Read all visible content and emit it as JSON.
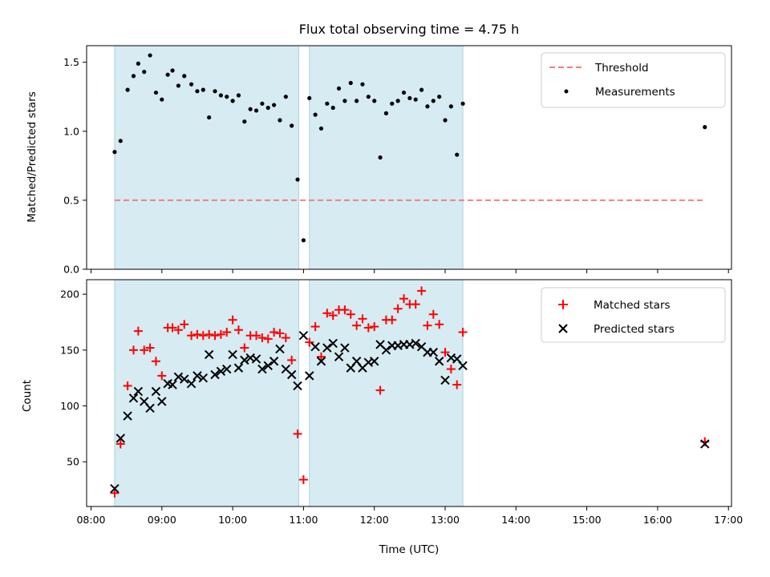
{
  "chart_data": [
    {
      "type": "scatter",
      "title": "Flux total observing time = 4.75 h",
      "xlabel": "",
      "ylabel": "Matched/Predicted stars",
      "ylim": [
        0,
        1.62
      ],
      "yticks": [
        "0.0",
        "0.5",
        "1.0",
        "1.5"
      ],
      "xlim": [
        "08:00",
        "17:00"
      ],
      "grid": false,
      "legend_position": "top-right",
      "shaded_intervals": [
        [
          "08:20",
          "10:56"
        ],
        [
          "11:05",
          "13:15"
        ],
        [
          "08:20",
          "10:56"
        ]
      ],
      "series": [
        {
          "name": "Threshold",
          "style": "dashed-line",
          "color": "#f08080",
          "x": [
            "08:20",
            "16:40"
          ],
          "y": [
            0.5,
            0.5
          ]
        },
        {
          "name": "Measurements",
          "style": "dot",
          "color": "#000000",
          "x": [
            "08:20",
            "08:25",
            "08:31",
            "08:36",
            "08:40",
            "08:45",
            "08:50",
            "08:55",
            "09:00",
            "09:05",
            "09:09",
            "09:14",
            "09:19",
            "09:25",
            "09:30",
            "09:35",
            "09:40",
            "09:45",
            "09:50",
            "09:55",
            "10:00",
            "10:05",
            "10:10",
            "10:15",
            "10:20",
            "10:25",
            "10:30",
            "10:35",
            "10:40",
            "10:45",
            "10:50",
            "10:55",
            "11:00",
            "11:05",
            "11:10",
            "11:15",
            "11:20",
            "11:25",
            "11:30",
            "11:35",
            "11:40",
            "11:45",
            "11:50",
            "11:55",
            "12:00",
            "12:05",
            "12:10",
            "12:15",
            "12:20",
            "12:25",
            "12:30",
            "12:35",
            "12:40",
            "12:45",
            "12:50",
            "12:55",
            "13:00",
            "13:05",
            "13:10",
            "13:15",
            "16:40"
          ],
          "y": [
            0.85,
            0.93,
            1.3,
            1.4,
            1.49,
            1.43,
            1.55,
            1.28,
            1.23,
            1.41,
            1.44,
            1.33,
            1.4,
            1.34,
            1.29,
            1.3,
            1.1,
            1.29,
            1.26,
            1.25,
            1.22,
            1.26,
            1.07,
            1.16,
            1.15,
            1.2,
            1.17,
            1.19,
            1.08,
            1.25,
            1.04,
            0.65,
            0.21,
            1.24,
            1.12,
            1.02,
            1.2,
            1.17,
            1.31,
            1.22,
            1.35,
            1.22,
            1.34,
            1.25,
            1.22,
            0.81,
            1.13,
            1.2,
            1.22,
            1.28,
            1.24,
            1.23,
            1.3,
            1.18,
            1.22,
            1.25,
            1.08,
            1.18,
            0.83,
            1.2,
            1.03
          ]
        }
      ]
    },
    {
      "type": "scatter",
      "title": "",
      "xlabel": "Time (UTC)",
      "ylabel": "Count",
      "ylim": [
        10,
        213
      ],
      "yticks": [
        "50",
        "100",
        "150",
        "200"
      ],
      "xlim": [
        "08:00",
        "17:00"
      ],
      "xticks": [
        "08:00",
        "09:00",
        "10:00",
        "11:00",
        "12:00",
        "13:00",
        "14:00",
        "15:00",
        "16:00",
        "17:00"
      ],
      "grid": false,
      "legend_position": "top-right",
      "series": [
        {
          "name": "Matched stars",
          "style": "plus",
          "color": "#ff0000",
          "x": [
            "08:20",
            "08:25",
            "08:31",
            "08:36",
            "08:40",
            "08:45",
            "08:50",
            "08:55",
            "09:00",
            "09:05",
            "09:09",
            "09:14",
            "09:19",
            "09:25",
            "09:30",
            "09:35",
            "09:40",
            "09:45",
            "09:50",
            "09:55",
            "10:00",
            "10:05",
            "10:10",
            "10:15",
            "10:20",
            "10:25",
            "10:30",
            "10:35",
            "10:40",
            "10:45",
            "10:50",
            "10:55",
            "11:00",
            "11:05",
            "11:10",
            "11:15",
            "11:20",
            "11:25",
            "11:30",
            "11:35",
            "11:40",
            "11:45",
            "11:50",
            "11:55",
            "12:00",
            "12:05",
            "12:10",
            "12:15",
            "12:20",
            "12:25",
            "12:30",
            "12:35",
            "12:40",
            "12:45",
            "12:50",
            "12:55",
            "13:00",
            "13:05",
            "13:10",
            "13:15",
            "16:40"
          ],
          "y": [
            22,
            66,
            118,
            150,
            167,
            150,
            152,
            140,
            127,
            170,
            170,
            168,
            173,
            163,
            164,
            163,
            164,
            163,
            164,
            166,
            177,
            168,
            152,
            163,
            163,
            161,
            160,
            166,
            165,
            161,
            141,
            75,
            34,
            157,
            171,
            144,
            183,
            181,
            186,
            186,
            182,
            172,
            178,
            170,
            171,
            114,
            177,
            177,
            187,
            196,
            191,
            191,
            203,
            172,
            182,
            173,
            148,
            133,
            119,
            166,
            68
          ]
        },
        {
          "name": "Predicted stars",
          "style": "x",
          "color": "#000000",
          "x": [
            "08:20",
            "08:25",
            "08:31",
            "08:36",
            "08:40",
            "08:45",
            "08:50",
            "08:55",
            "09:00",
            "09:05",
            "09:09",
            "09:14",
            "09:19",
            "09:25",
            "09:30",
            "09:35",
            "09:40",
            "09:45",
            "09:50",
            "09:55",
            "10:00",
            "10:05",
            "10:10",
            "10:15",
            "10:20",
            "10:25",
            "10:30",
            "10:35",
            "10:40",
            "10:45",
            "10:50",
            "10:55",
            "11:00",
            "11:05",
            "11:10",
            "11:15",
            "11:20",
            "11:25",
            "11:30",
            "11:35",
            "11:40",
            "11:45",
            "11:50",
            "11:55",
            "12:00",
            "12:05",
            "12:10",
            "12:15",
            "12:20",
            "12:25",
            "12:30",
            "12:35",
            "12:40",
            "12:45",
            "12:50",
            "12:55",
            "13:00",
            "13:05",
            "13:10",
            "13:15",
            "16:40"
          ],
          "y": [
            26,
            71,
            91,
            107,
            113,
            104,
            98,
            113,
            104,
            120,
            119,
            126,
            124,
            120,
            127,
            125,
            146,
            128,
            131,
            133,
            146,
            134,
            141,
            143,
            142,
            133,
            136,
            140,
            151,
            133,
            128,
            118,
            163,
            127,
            153,
            140,
            152,
            156,
            144,
            152,
            134,
            140,
            134,
            139,
            140,
            155,
            150,
            154,
            154,
            155,
            155,
            156,
            153,
            148,
            148,
            140,
            123,
            143,
            142,
            136,
            66
          ]
        }
      ]
    }
  ]
}
